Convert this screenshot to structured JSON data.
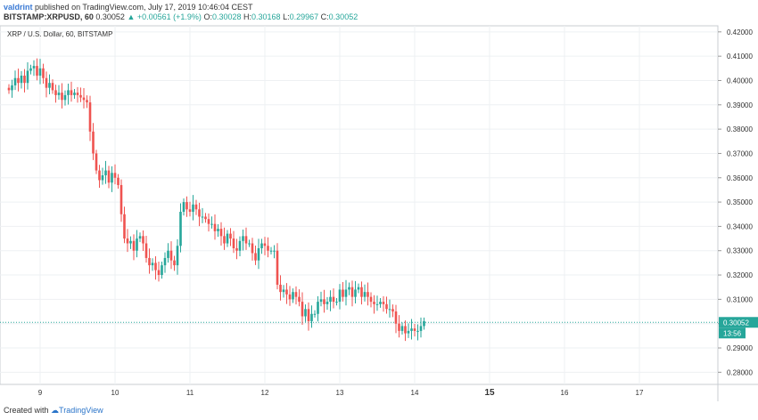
{
  "header": {
    "author": "valdrint",
    "published": "published on TradingView.com, July 17, 2019 10:46:04 CEST",
    "symbol": "BITSTAMP:XRPUSD, 60",
    "last": "0.30052",
    "change": "+0.00561 (+1.9%)",
    "open_label": "O:",
    "open": "0.30028",
    "high_label": "H:",
    "high": "0.30168",
    "low_label": "L:",
    "low": "0.29967",
    "close_label": "C:",
    "close": "0.30052"
  },
  "footer": {
    "created_with": "Created with",
    "brand": "TradingView"
  },
  "colors": {
    "up": "#26a69a",
    "down": "#ef5350",
    "price_line": "#26a69a",
    "grid": "#eef0f3"
  },
  "chart_data": {
    "type": "candlestick",
    "title": "XRP / U.S. Dollar, 60, BITSTAMP",
    "ylim": [
      0.275,
      0.4225
    ],
    "y_ticks": [
      "0.28000",
      "0.29000",
      "0.30000",
      "0.31000",
      "0.32000",
      "0.33000",
      "0.34000",
      "0.35000",
      "0.36000",
      "0.37000",
      "0.38000",
      "0.39000",
      "0.40000",
      "0.41000",
      "0.42000"
    ],
    "y_tick_values": [
      0.28,
      0.29,
      0.3,
      0.31,
      0.32,
      0.33,
      0.34,
      0.35,
      0.36,
      0.37,
      0.38,
      0.39,
      0.4,
      0.41,
      0.42
    ],
    "x_labels": [
      "9",
      "10",
      "11",
      "12",
      "13",
      "14",
      "15",
      "16",
      "17"
    ],
    "x_label_index": [
      10,
      34,
      58,
      82,
      106,
      130,
      154,
      178,
      202
    ],
    "bold_x_labels": [
      "15"
    ],
    "last_price": 0.30052,
    "last_price_label": "0.30052",
    "countdown": "13:56",
    "close_path": [
      0.396,
      0.398,
      0.401,
      0.399,
      0.402,
      0.399,
      0.404,
      0.405,
      0.406,
      0.402,
      0.405,
      0.401,
      0.397,
      0.399,
      0.396,
      0.394,
      0.395,
      0.392,
      0.394,
      0.396,
      0.394,
      0.395,
      0.394,
      0.393,
      0.392,
      0.391,
      0.379,
      0.37,
      0.363,
      0.359,
      0.361,
      0.363,
      0.358,
      0.362,
      0.36,
      0.357,
      0.345,
      0.335,
      0.333,
      0.334,
      0.33,
      0.335,
      0.336,
      0.333,
      0.327,
      0.324,
      0.325,
      0.322,
      0.32,
      0.324,
      0.327,
      0.33,
      0.326,
      0.324,
      0.332,
      0.346,
      0.35,
      0.347,
      0.346,
      0.349,
      0.347,
      0.344,
      0.344,
      0.343,
      0.341,
      0.341,
      0.338,
      0.339,
      0.336,
      0.333,
      0.337,
      0.335,
      0.331,
      0.33,
      0.334,
      0.336,
      0.333,
      0.333,
      0.329,
      0.326,
      0.331,
      0.333,
      0.332,
      0.33,
      0.33,
      0.33,
      0.316,
      0.313,
      0.314,
      0.312,
      0.31,
      0.313,
      0.311,
      0.309,
      0.303,
      0.306,
      0.301,
      0.304,
      0.304,
      0.309,
      0.31,
      0.308,
      0.309,
      0.311,
      0.309,
      0.309,
      0.314,
      0.311,
      0.314,
      0.315,
      0.311,
      0.314,
      0.315,
      0.311,
      0.313,
      0.311,
      0.309,
      0.308,
      0.308,
      0.309,
      0.308,
      0.306,
      0.306,
      0.305,
      0.3,
      0.297,
      0.299,
      0.296,
      0.297,
      0.298,
      0.297,
      0.297,
      0.299,
      0.301
    ]
  }
}
